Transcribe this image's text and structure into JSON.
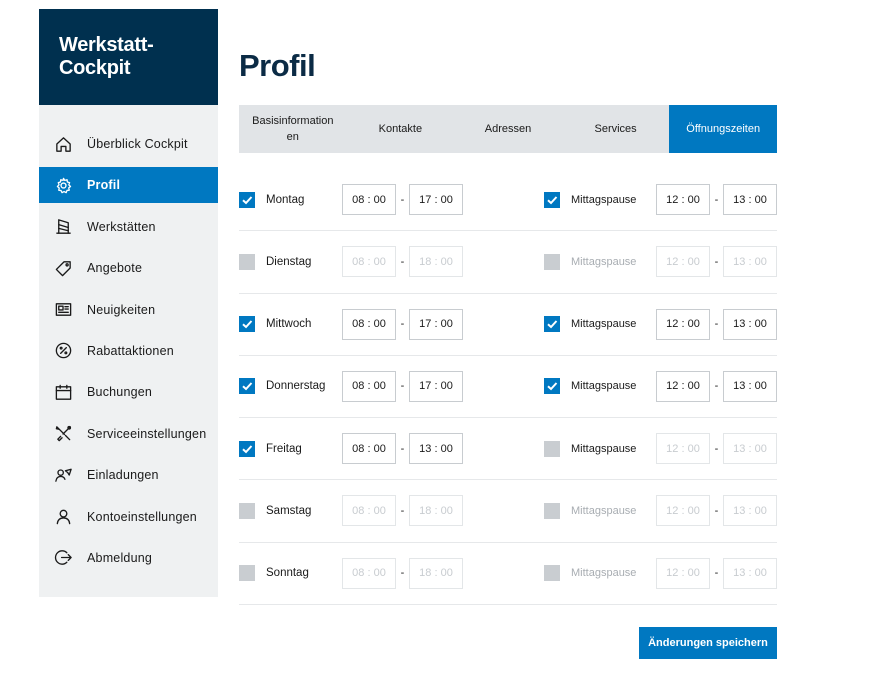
{
  "app": {
    "title_line1": "Werkstatt-",
    "title_line2": "Cockpit"
  },
  "sidebar": {
    "items": [
      {
        "label": "Überblick Cockpit",
        "icon": "home-icon",
        "active": false
      },
      {
        "label": "Profil",
        "icon": "gear-icon",
        "active": true
      },
      {
        "label": "Werkstätten",
        "icon": "workshop-icon",
        "active": false
      },
      {
        "label": "Angebote",
        "icon": "tag-icon",
        "active": false
      },
      {
        "label": "Neuigkeiten",
        "icon": "newspaper-icon",
        "active": false
      },
      {
        "label": "Rabattaktionen",
        "icon": "percent-icon",
        "active": false
      },
      {
        "label": "Buchungen",
        "icon": "calendar-icon",
        "active": false
      },
      {
        "label": "Serviceeinstellungen",
        "icon": "tools-icon",
        "active": false
      },
      {
        "label": "Einladungen",
        "icon": "invitation-icon",
        "active": false
      },
      {
        "label": "Kontoeinstellungen",
        "icon": "user-icon",
        "active": false
      },
      {
        "label": "Abmeldung",
        "icon": "logout-icon",
        "active": false
      }
    ]
  },
  "page": {
    "title": "Profil"
  },
  "tabs": [
    {
      "label": "Basisinformation\nen",
      "active": false
    },
    {
      "label": "Kontakte",
      "active": false
    },
    {
      "label": "Adressen",
      "active": false
    },
    {
      "label": "Services",
      "active": false
    },
    {
      "label": "Öffnungszeiten",
      "active": true
    }
  ],
  "hours": {
    "pause_label": "Mittagspause",
    "separator": "-",
    "days": [
      {
        "day": "Montag",
        "open": true,
        "from": "08 : 00",
        "to": "17 : 00",
        "pause": true,
        "pause_from": "12 : 00",
        "pause_to": "13 : 00"
      },
      {
        "day": "Dienstag",
        "open": false,
        "from": "08 : 00",
        "to": "18 : 00",
        "pause": false,
        "pause_from": "12 : 00",
        "pause_to": "13 : 00"
      },
      {
        "day": "Mittwoch",
        "open": true,
        "from": "08 : 00",
        "to": "17 : 00",
        "pause": true,
        "pause_from": "12 : 00",
        "pause_to": "13 : 00"
      },
      {
        "day": "Donnerstag",
        "open": true,
        "from": "08 : 00",
        "to": "17 : 00",
        "pause": true,
        "pause_from": "12 : 00",
        "pause_to": "13 : 00"
      },
      {
        "day": "Freitag",
        "open": true,
        "from": "08 : 00",
        "to": "13 : 00",
        "pause": false,
        "pause_from": "12 : 00",
        "pause_to": "13 : 00"
      },
      {
        "day": "Samstag",
        "open": false,
        "from": "08 : 00",
        "to": "18 : 00",
        "pause": false,
        "pause_from": "12 : 00",
        "pause_to": "13 : 00"
      },
      {
        "day": "Sonntag",
        "open": false,
        "from": "08 : 00",
        "to": "18 : 00",
        "pause": false,
        "pause_from": "12 : 00",
        "pause_to": "13 : 00"
      }
    ]
  },
  "actions": {
    "save_label": "Änderungen speichern"
  },
  "colors": {
    "brand_dark": "#00304f",
    "accent": "#0078c1",
    "sidebar_bg": "#eff1f2",
    "tab_bg": "#e1e4e7",
    "checkbox_off": "#c9cdd1"
  }
}
